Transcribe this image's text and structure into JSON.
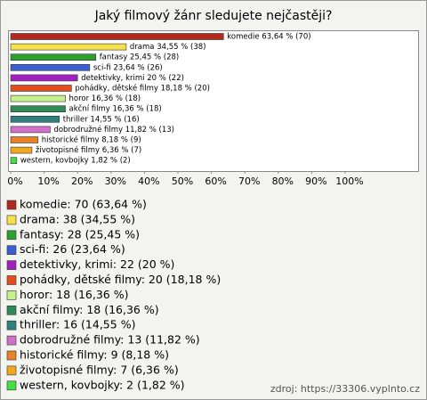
{
  "chart_data": {
    "type": "bar",
    "title": "Jaký filmový žánr sledujete nejčastěji?",
    "categories": [
      "komedie",
      "drama",
      "fantasy",
      "sci-fi",
      "detektivky, krimi",
      "pohádky, dětské filmy",
      "horor",
      "akční filmy",
      "thriller",
      "dobrodružné filmy",
      "historické filmy",
      "životopisné filmy",
      "western, kovbojky"
    ],
    "values": [
      63.64,
      34.55,
      25.45,
      23.64,
      20,
      18.18,
      16.36,
      16.36,
      14.55,
      11.82,
      8.18,
      6.36,
      1.82
    ],
    "value_labels": [
      "komedie 63,64 % (70)",
      "drama 34,55 % (38)",
      "fantasy 25,45 % (28)",
      "sci-fi 23,64 % (26)",
      "detektivky, krimi 20 % (22)",
      "pohádky, dětské filmy 18,18 % (20)",
      "horor 16,36 % (18)",
      "akční filmy 16,36 % (18)",
      "thriller 14,55 % (16)",
      "dobrodružné filmy 11,82 % (13)",
      "historické filmy 8,18 % (9)",
      "životopisné filmy 6,36 % (7)",
      "western, kovbojky 1,82 % (2)"
    ],
    "legend_labels": [
      "komedie: 70 (63,64 %)",
      "drama: 38 (34,55 %)",
      "fantasy: 28 (25,45 %)",
      "sci-fi: 26 (23,64 %)",
      "detektivky, krimi: 22 (20 %)",
      "pohádky, dětské filmy: 20 (18,18 %)",
      "horor: 18 (16,36 %)",
      "akční filmy: 18 (16,36 %)",
      "thriller: 16 (14,55 %)",
      "dobrodružné filmy: 13 (11,82 %)",
      "historické filmy: 9 (8,18 %)",
      "životopisné filmy: 7 (6,36 %)",
      "western, kovbojky: 2 (1,82 %)"
    ],
    "colors": [
      "#b22a1e",
      "#f4e04a",
      "#2ca02c",
      "#3b5fd0",
      "#a020c0",
      "#e0501e",
      "#c6f08c",
      "#2e8b57",
      "#2f7f7f",
      "#d070c8",
      "#e8822a",
      "#f0a820",
      "#44dd44"
    ],
    "xlim": [
      0,
      100
    ],
    "xticks": [
      {
        "value": 0,
        "label": "0%"
      },
      {
        "value": 10,
        "label": "10%"
      },
      {
        "value": 20,
        "label": "20%"
      },
      {
        "value": 30,
        "label": "30%"
      },
      {
        "value": 40,
        "label": "40%"
      },
      {
        "value": 50,
        "label": "50%"
      },
      {
        "value": 60,
        "label": "60%"
      },
      {
        "value": 70,
        "label": "70%"
      },
      {
        "value": 80,
        "label": "80%"
      },
      {
        "value": 90,
        "label": "90%"
      },
      {
        "value": 100,
        "label": "100%"
      }
    ],
    "source": "zdroj: https://33306.vyplnto.cz"
  }
}
